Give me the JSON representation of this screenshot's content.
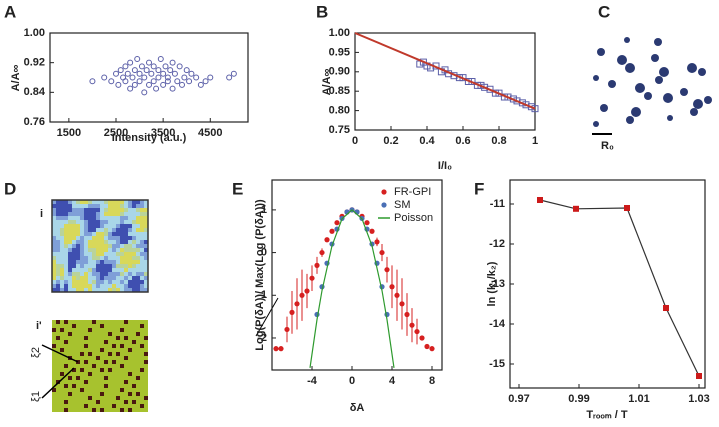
{
  "panel_labels": [
    "A",
    "B",
    "C",
    "D",
    "E",
    "F"
  ],
  "panel_c": {
    "scale_label": "R₀"
  },
  "panel_d": {
    "top_label": "i",
    "bottom_label": "i'",
    "xi_2": "ξ2",
    "xi_1": "ξ1"
  },
  "chart_data": [
    {
      "type": "scatter",
      "xlabel": "Intensity (a.u.)",
      "ylabel": "A/A∞",
      "xlim": [
        1100,
        5300
      ],
      "xticks": [
        1500,
        2500,
        3500,
        4500
      ],
      "ylim": [
        0.76,
        1.0
      ],
      "yticks": [
        0.76,
        0.84,
        0.92,
        {
          "value": 1,
          "label": "1.00"
        }
      ],
      "series": [
        {
          "style": "markers",
          "marker": "circle-open",
          "color": "#5b5fa8",
          "x": [
            2000,
            2250,
            2400,
            2500,
            2550,
            2600,
            2650,
            2700,
            2700,
            2750,
            2800,
            2800,
            2850,
            2900,
            2900,
            2950,
            3000,
            3000,
            3050,
            3100,
            3100,
            3150,
            3200,
            3200,
            3250,
            3300,
            3300,
            3350,
            3400,
            3400,
            3450,
            3500,
            3500,
            3550,
            3600,
            3600,
            3650,
            3700,
            3700,
            3750,
            3800,
            3850,
            3900,
            3950,
            4000,
            4050,
            4100,
            4200,
            4300,
            4400,
            4500,
            4900,
            5000
          ],
          "values": [
            0.87,
            0.88,
            0.87,
            0.89,
            0.86,
            0.9,
            0.88,
            0.87,
            0.91,
            0.89,
            0.85,
            0.92,
            0.88,
            0.86,
            0.9,
            0.93,
            0.87,
            0.89,
            0.91,
            0.84,
            0.88,
            0.9,
            0.86,
            0.92,
            0.89,
            0.87,
            0.91,
            0.85,
            0.88,
            0.9,
            0.93,
            0.86,
            0.89,
            0.91,
            0.87,
            0.88,
            0.9,
            0.85,
            0.92,
            0.89,
            0.87,
            0.91,
            0.86,
            0.88,
            0.9,
            0.87,
            0.89,
            0.88,
            0.86,
            0.87,
            0.88,
            0.88,
            0.89
          ]
        }
      ]
    },
    {
      "type": "scatter",
      "xlabel": "I/I₀",
      "ylabel": "A/A∞",
      "xlim": [
        0,
        1
      ],
      "xticks": [
        0,
        0.2,
        0.4,
        0.6,
        0.8,
        1
      ],
      "ylim": [
        0.75,
        1.0
      ],
      "yticks": [
        0.75,
        {
          "value": 0.8,
          "label": "0.80"
        },
        0.85,
        {
          "value": 0.9,
          "label": "0.90"
        },
        0.95,
        {
          "value": 1,
          "label": "1.00"
        }
      ],
      "series": [
        {
          "style": "markers",
          "marker": "square-open",
          "color": "#5b5fa8",
          "x": [
            0.36,
            0.38,
            0.4,
            0.42,
            0.45,
            0.48,
            0.5,
            0.52,
            0.55,
            0.58,
            0.6,
            0.63,
            0.65,
            0.68,
            0.7,
            0.72,
            0.75,
            0.78,
            0.8,
            0.83,
            0.85,
            0.88,
            0.9,
            0.93,
            0.95,
            0.98,
            1.0
          ],
          "values": [
            0.92,
            0.925,
            0.915,
            0.91,
            0.915,
            0.9,
            0.905,
            0.895,
            0.89,
            0.885,
            0.885,
            0.875,
            0.875,
            0.865,
            0.865,
            0.86,
            0.855,
            0.845,
            0.845,
            0.835,
            0.835,
            0.83,
            0.825,
            0.82,
            0.815,
            0.81,
            0.805
          ]
        },
        {
          "style": "line",
          "color": "#c0392b",
          "x": [
            0,
            1
          ],
          "values": [
            1,
            0.805
          ]
        }
      ]
    },
    {
      "type": "scatter",
      "xlabel": "δA",
      "ylabel": "Log(P(δA))/ Max(Log (P(δA)))",
      "xlim": [
        -8,
        9
      ],
      "xticks": [
        -4,
        0,
        4,
        8
      ],
      "ylim": [
        -2.75,
        1.7
      ],
      "yticks": [
        -2,
        -1,
        0,
        1
      ],
      "legend": "top-right",
      "series": [
        {
          "name": "FR-GPI",
          "style": "markers",
          "marker": "circle",
          "color": "#d62020",
          "x": [
            -7.6,
            -7.1,
            -6.5,
            -6,
            -5.5,
            -5,
            -4.5,
            -4,
            -3.5,
            -3,
            -2.5,
            -2,
            -1.5,
            -1,
            -0.5,
            0,
            0.5,
            1,
            1.5,
            2,
            2.5,
            3,
            3.5,
            4,
            4.5,
            5,
            5.5,
            6,
            6.5,
            7,
            7.5,
            8
          ],
          "values": [
            -2.25,
            -2.25,
            -1.8,
            -1.4,
            -1.2,
            -1.0,
            -0.9,
            -0.6,
            -0.3,
            0.0,
            0.3,
            0.5,
            0.7,
            0.85,
            0.95,
            1.0,
            0.95,
            0.85,
            0.7,
            0.5,
            0.25,
            0.0,
            -0.4,
            -0.8,
            -1.0,
            -1.2,
            -1.45,
            -1.7,
            -1.85,
            -2.0,
            -2.2,
            -2.25
          ],
          "errors": [
            0,
            0,
            0.3,
            0.5,
            0.6,
            0.6,
            0.4,
            0.3,
            0.2,
            0.1,
            0.05,
            0.05,
            0.03,
            0.03,
            0.02,
            0.02,
            0.02,
            0.03,
            0.03,
            0.05,
            0.1,
            0.2,
            0.3,
            0.5,
            0.6,
            0.6,
            0.5,
            0.4,
            0.3,
            0,
            0,
            0
          ]
        },
        {
          "name": "SM",
          "style": "markers",
          "marker": "circle",
          "color": "#4a6fb5",
          "x": [
            -3.5,
            -3,
            -2.5,
            -2,
            -1.5,
            -1,
            -0.5,
            0,
            0.5,
            1,
            1.5,
            2,
            2.5,
            3,
            3.5
          ],
          "values": [
            -1.45,
            -0.8,
            -0.25,
            0.2,
            0.55,
            0.8,
            0.95,
            1,
            0.95,
            0.8,
            0.55,
            0.2,
            -0.25,
            -0.8,
            -1.45
          ]
        },
        {
          "name": "Poisson",
          "style": "line",
          "color": "#2e9a2e",
          "x": [
            -4.2,
            -3.5,
            -3,
            -2,
            -1,
            0,
            1,
            2,
            3,
            3.5,
            4.2
          ],
          "values": [
            -2.7,
            -1.57,
            -0.89,
            0.16,
            0.79,
            1,
            0.79,
            0.16,
            -0.89,
            -1.57,
            -2.7
          ]
        }
      ]
    },
    {
      "type": "line",
      "xlabel": "Tᵣₒₒₘ / T",
      "ylabel": "ln (k₁/k₂)",
      "xlim": [
        0.967,
        1.032
      ],
      "xticks": [
        0.97,
        0.99,
        1.01,
        1.03
      ],
      "ylim": [
        -15.6,
        -10.4
      ],
      "yticks": [
        -15,
        -14,
        -13,
        -12,
        -11
      ],
      "series": [
        {
          "style": "line+markers",
          "marker": "square",
          "color": "#cc1a1a",
          "line_color": "#333333",
          "x": [
            0.977,
            0.989,
            1.006,
            1.019,
            1.03
          ],
          "values": [
            -10.9,
            -11.12,
            -11.1,
            -13.6,
            -15.3
          ]
        }
      ]
    }
  ]
}
